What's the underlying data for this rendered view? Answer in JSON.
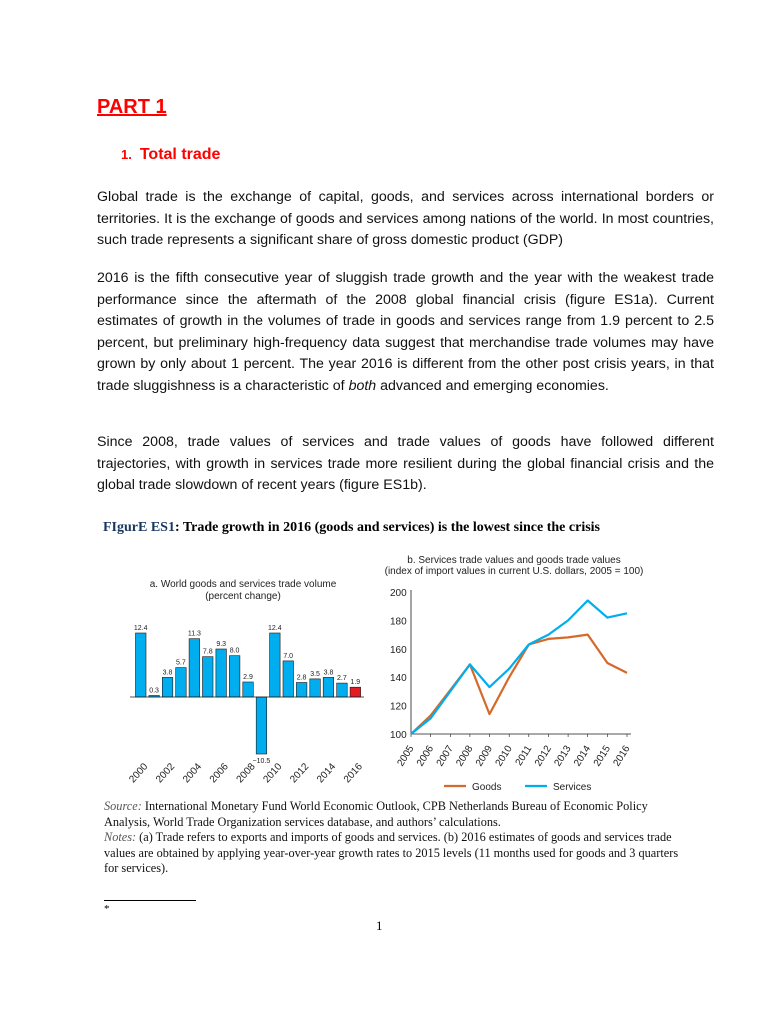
{
  "part_title": "PART 1",
  "section": {
    "number": "1.",
    "title": "Total trade"
  },
  "paragraphs": {
    "p1": "Global trade is the exchange of capital, goods, and services across international borders or territories. It is the exchange of goods and services among nations of the world. In most countries, such trade represents a significant share of gross domestic product (GDP)",
    "p2_before": "2016 is the fifth consecutive year of sluggish trade growth and the year with the weakest trade performance since the aftermath of the 2008 global financial crisis (figure ES1a). Current estimates of growth in the volumes of trade in goods and services range from 1.9 percent to 2.5 percent, but preliminary high-frequency data suggest that merchandise trade volumes may have grown by only about 1 percent. The year 2016 is different from the other post crisis years, in that trade sluggishness is a characteristic of ",
    "p2_emph": "both",
    "p2_after": " advanced and emerging economies.",
    "p3": "Since 2008, trade values of services and trade values of goods have followed different trajectories, with growth in services trade more resilient during the global financial crisis and the global trade slowdown of recent years (figure ES1b)."
  },
  "figure": {
    "label": "FIgurE ES1",
    "title": ": Trade growth in 2016 (goods and services) is the lowest since the crisis"
  },
  "chart_data": [
    {
      "type": "bar",
      "title": "a. World goods and services trade volume",
      "subtitle": "(percent change)",
      "categories": [
        "2000",
        "2001",
        "2002",
        "2003",
        "2004",
        "2005",
        "2006",
        "2007",
        "2008",
        "2009",
        "2010",
        "2011",
        "2012",
        "2013",
        "2014",
        "2015",
        "2016"
      ],
      "values": [
        12.4,
        0.3,
        3.8,
        5.7,
        11.3,
        7.8,
        9.3,
        8.0,
        2.9,
        -10.5,
        12.4,
        7.0,
        2.8,
        3.5,
        3.8,
        2.7,
        1.9
      ],
      "value_labels": [
        "12.4",
        "0.3",
        "3.8",
        "5.7",
        "11.3",
        "7.8",
        "9.3",
        "8.0",
        "2.9",
        "−10.5",
        "12.4",
        "7.0",
        "2.8",
        "3.5",
        "3.8",
        "2.7",
        "1.9"
      ],
      "tick_labels": [
        "2000",
        "2002",
        "2004",
        "2006",
        "2008",
        "2010",
        "2012",
        "2014",
        "2016"
      ],
      "ylim": [
        -10.5,
        12.4
      ],
      "colors": {
        "bar": "#00aeef",
        "highlight": "#e31b23",
        "highlight_category": "2016"
      },
      "grid": false
    },
    {
      "type": "line",
      "title": "b. Services trade values and goods trade values",
      "subtitle": "(index of import values in current U.S. dollars, 2005 = 100)",
      "x": [
        "2005",
        "2006",
        "2007",
        "2008",
        "2009",
        "2010",
        "2011",
        "2012",
        "2013",
        "2014",
        "2015",
        "2016"
      ],
      "ylim": [
        100,
        200
      ],
      "yticks": [
        "100",
        "120",
        "140",
        "160",
        "180",
        "200"
      ],
      "series": [
        {
          "name": "Goods",
          "color": "#d4692a",
          "values": [
            100,
            113,
            131,
            149,
            114,
            140,
            163,
            167,
            168,
            170,
            150,
            143
          ]
        },
        {
          "name": "Services",
          "color": "#00aeef",
          "values": [
            100,
            111,
            130,
            149,
            133,
            146,
            163,
            170,
            180,
            194,
            182,
            185
          ]
        }
      ],
      "legend": "bottom",
      "grid": false
    }
  ],
  "source": {
    "source_label": "Source:",
    "source_text": " International Monetary Fund World Economic Outlook, CPB Netherlands Bureau of Economic Policy Analysis, World Trade Organization services database, and authors’ calculations.",
    "notes_label": "Notes:",
    "notes_text": " (a) Trade refers to exports and imports of goods and services. (b) 2016 estimates of goods and services trade values are obtained by applying year-over-year growth rates to 2015 levels (11 months used for goods and 3 quarters for services)."
  },
  "footnote_marker": "*",
  "page_number": "1"
}
